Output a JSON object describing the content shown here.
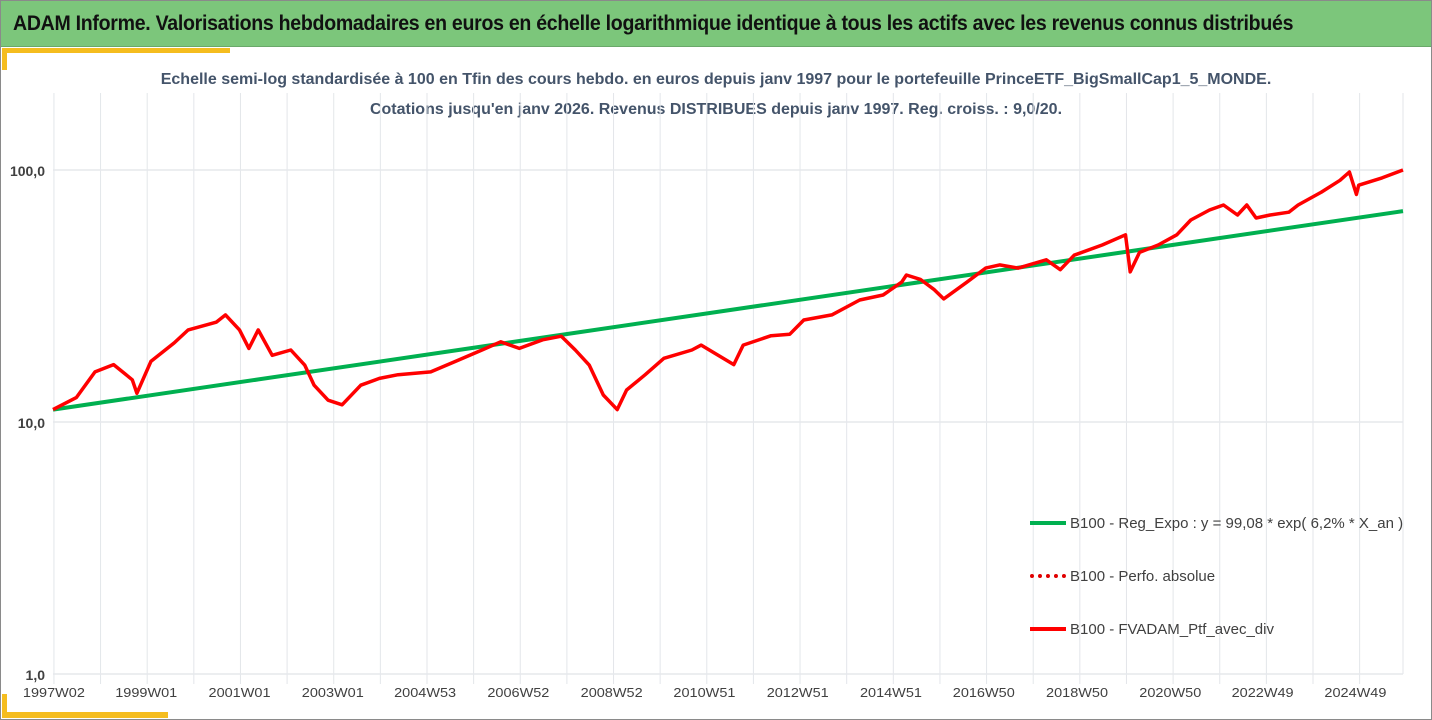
{
  "header": {
    "title": "ADAM Informe. Valorisations hebdomadaires en euros en échelle logarithmique identique à tous les actifs avec les revenus connus distribués"
  },
  "colors": {
    "header_bg": "#7cc67b",
    "accent": "#f5bd1f",
    "regression": "#00b050",
    "portfolio": "#ff0000",
    "perf": "#e00000"
  },
  "chart_data": {
    "type": "line",
    "title_lines": [
      "Echelle semi-log standardisée  à 100 en Tfin des cours hebdo.  en euros depuis janv 1997 pour le portefeuille PrinceETF_BigSmallCap1_5_MONDE.",
      "Cotations jusqu'en janv 2026. Revenus DISTRIBUES depuis janv 1997. Reg. croiss. : 9,0/20."
    ],
    "y_scale": "log",
    "ylim": [
      1,
      200
    ],
    "y_ticks": [
      {
        "v": 1,
        "label": "1,0"
      },
      {
        "v": 10,
        "label": "10,0"
      },
      {
        "v": 100,
        "label": "100,0"
      }
    ],
    "x_ticks": [
      {
        "v": 1997.02,
        "label": "1997W02"
      },
      {
        "v": 1999.0,
        "label": "1999W01"
      },
      {
        "v": 2001.0,
        "label": "2001W01"
      },
      {
        "v": 2003.0,
        "label": "2003W01"
      },
      {
        "v": 2004.98,
        "label": "2004W53"
      },
      {
        "v": 2006.98,
        "label": "2006W52"
      },
      {
        "v": 2008.98,
        "label": "2008W52"
      },
      {
        "v": 2010.97,
        "label": "2010W51"
      },
      {
        "v": 2012.97,
        "label": "2012W51"
      },
      {
        "v": 2014.97,
        "label": "2014W51"
      },
      {
        "v": 2016.96,
        "label": "2016W50"
      },
      {
        "v": 2018.96,
        "label": "2018W50"
      },
      {
        "v": 2020.96,
        "label": "2020W50"
      },
      {
        "v": 2022.94,
        "label": "2022W49"
      },
      {
        "v": 2024.93,
        "label": "2024W49"
      }
    ],
    "xlim": [
      1997.0,
      2025.95
    ],
    "grid": true,
    "legend_position": "bottom-right",
    "series": [
      {
        "name": "B100 - Reg_Expo : y = 99,08 * exp( 6,2% *  X_an )",
        "style": "solid",
        "color": "#00b050",
        "x": [
          1997.0,
          2025.95
        ],
        "y": [
          11.2,
          68.7
        ]
      },
      {
        "name": "B100 - Perfo. absolue",
        "style": "dotted",
        "color": "#e00000",
        "x": [],
        "y": []
      },
      {
        "name": "B100 - FVADAM_Ptf_avec_div",
        "style": "solid",
        "color": "#ff0000",
        "x": [
          1997.0,
          1997.5,
          1997.9,
          1998.3,
          1998.7,
          1998.8,
          1999.1,
          1999.6,
          1999.9,
          2000.5,
          2000.7,
          2001.0,
          2001.2,
          2001.4,
          2001.7,
          2002.1,
          2002.4,
          2002.6,
          2002.9,
          2003.2,
          2003.6,
          2004.0,
          2004.4,
          2005.1,
          2005.6,
          2006.2,
          2006.6,
          2007.0,
          2007.5,
          2007.9,
          2008.2,
          2008.5,
          2008.8,
          2009.1,
          2009.3,
          2009.7,
          2010.1,
          2010.7,
          2010.9,
          2011.6,
          2011.8,
          2012.4,
          2012.8,
          2013.1,
          2013.7,
          2014.3,
          2014.8,
          2015.2,
          2015.3,
          2015.6,
          2015.9,
          2016.1,
          2016.6,
          2017.0,
          2017.3,
          2017.7,
          2018.3,
          2018.6,
          2018.9,
          2019.5,
          2020.0,
          2020.1,
          2020.3,
          2020.7,
          2021.1,
          2021.4,
          2021.8,
          2022.1,
          2022.4,
          2022.6,
          2022.8,
          2023.1,
          2023.5,
          2023.7,
          2024.2,
          2024.6,
          2024.8,
          2024.95,
          2025.0,
          2025.5,
          2025.95
        ],
        "y": [
          11.2,
          12.5,
          15.8,
          16.9,
          14.7,
          13.0,
          17.4,
          20.6,
          23.2,
          24.9,
          26.6,
          23.2,
          19.6,
          23.2,
          18.4,
          19.3,
          16.8,
          14.0,
          12.2,
          11.7,
          14.0,
          14.9,
          15.4,
          15.8,
          17.3,
          19.3,
          20.8,
          19.6,
          21.2,
          21.9,
          19.3,
          16.8,
          12.8,
          11.2,
          13.4,
          15.4,
          17.9,
          19.3,
          20.2,
          16.9,
          20.2,
          22.0,
          22.3,
          25.4,
          26.6,
          30.5,
          31.9,
          35.9,
          38.3,
          36.8,
          33.5,
          30.8,
          35.9,
          40.8,
          42.0,
          40.8,
          44.0,
          40.2,
          45.9,
          50.4,
          55.3,
          39.4,
          47.1,
          50.4,
          55.3,
          63.3,
          69.4,
          72.6,
          66.3,
          72.6,
          64.5,
          66.3,
          68.0,
          72.6,
          81.7,
          91.0,
          98.2,
          80.0,
          87.0,
          93.0,
          100.0
        ]
      }
    ]
  }
}
